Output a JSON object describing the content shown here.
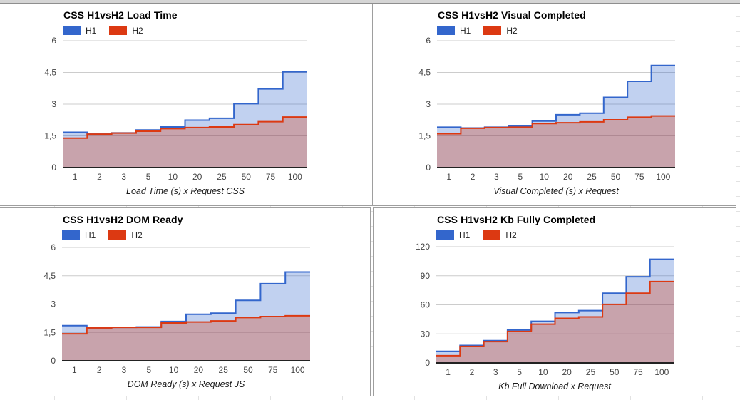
{
  "page": {
    "kind": "spreadsheet-embedded-charts",
    "grid": "2x2"
  },
  "legend": {
    "position": "top",
    "items": [
      "H1",
      "H2"
    ]
  },
  "colors": {
    "h1": "#3366cc",
    "h2": "#dc3912",
    "h1_fill": "rgba(51,102,204,0.30)",
    "h2_fill": "rgba(220,57,18,0.30)",
    "gridline": "#cccccc",
    "baseline": "#222222",
    "tick_label": "#444444",
    "card_border": "#9e9e9e",
    "sheet_gridline": "#e2e2e2",
    "top_strip": "#d5d5d5"
  },
  "chart_data": [
    {
      "id": "load-time",
      "type": "step-area",
      "title": "CSS H1vsH2 Load Time",
      "xlabel": "Load Time (s) x Request CSS",
      "categories": [
        "1",
        "2",
        "3",
        "5",
        "10",
        "20",
        "25",
        "50",
        "75",
        "100"
      ],
      "ylim": [
        0,
        6
      ],
      "y_ticks": [
        {
          "v": 0,
          "label": "0"
        },
        {
          "v": 1.5,
          "label": "1,5"
        },
        {
          "v": 3,
          "label": "3"
        },
        {
          "v": 4.5,
          "label": "4,5"
        },
        {
          "v": 6,
          "label": "6"
        }
      ],
      "grid": true,
      "legend_position": "top",
      "series": [
        {
          "name": "H1",
          "color": "#3366cc",
          "values": [
            1.67,
            1.58,
            1.64,
            1.78,
            1.92,
            2.24,
            2.33,
            3.02,
            3.72,
            4.53
          ]
        },
        {
          "name": "H2",
          "color": "#dc3912",
          "values": [
            1.39,
            1.58,
            1.63,
            1.72,
            1.84,
            1.89,
            1.92,
            2.03,
            2.17,
            2.39
          ]
        }
      ]
    },
    {
      "id": "visual-completed",
      "type": "step-area",
      "title": "CSS H1vsH2 Visual Completed",
      "xlabel": "Visual Completed (s) x Request",
      "categories": [
        "1",
        "2",
        "3",
        "5",
        "10",
        "20",
        "25",
        "50",
        "75",
        "100"
      ],
      "ylim": [
        0,
        6
      ],
      "y_ticks": [
        {
          "v": 0,
          "label": "0"
        },
        {
          "v": 1.5,
          "label": "1,5"
        },
        {
          "v": 3,
          "label": "3"
        },
        {
          "v": 4.5,
          "label": "4,5"
        },
        {
          "v": 6,
          "label": "6"
        }
      ],
      "grid": true,
      "legend_position": "top",
      "series": [
        {
          "name": "H1",
          "color": "#3366cc",
          "values": [
            1.91,
            1.87,
            1.91,
            1.96,
            2.2,
            2.5,
            2.57,
            3.32,
            4.08,
            4.83
          ]
        },
        {
          "name": "H2",
          "color": "#dc3912",
          "values": [
            1.6,
            1.86,
            1.89,
            1.91,
            2.08,
            2.12,
            2.16,
            2.26,
            2.38,
            2.44
          ]
        }
      ]
    },
    {
      "id": "dom-ready",
      "type": "step-area",
      "title": "CSS H1vsH2 DOM Ready",
      "xlabel": "DOM Ready (s) x Request JS",
      "categories": [
        "1",
        "2",
        "3",
        "5",
        "10",
        "20",
        "25",
        "50",
        "75",
        "100"
      ],
      "ylim": [
        0,
        6
      ],
      "y_ticks": [
        {
          "v": 0,
          "label": "0"
        },
        {
          "v": 1.5,
          "label": "1,5"
        },
        {
          "v": 3,
          "label": "3"
        },
        {
          "v": 4.5,
          "label": "4,5"
        },
        {
          "v": 6,
          "label": "6"
        }
      ],
      "grid": true,
      "legend_position": "top",
      "series": [
        {
          "name": "H1",
          "color": "#3366cc",
          "values": [
            1.86,
            1.74,
            1.77,
            1.79,
            2.08,
            2.46,
            2.52,
            3.2,
            4.08,
            4.7
          ]
        },
        {
          "name": "H2",
          "color": "#dc3912",
          "values": [
            1.43,
            1.74,
            1.77,
            1.77,
            2.0,
            2.05,
            2.11,
            2.29,
            2.34,
            2.38
          ]
        }
      ]
    },
    {
      "id": "kb-fully-completed",
      "type": "step-area",
      "title": "CSS H1vsH2 Kb Fully Completed",
      "xlabel": "Kb Full Download x Request",
      "categories": [
        "1",
        "2",
        "3",
        "5",
        "10",
        "20",
        "25",
        "50",
        "75",
        "100"
      ],
      "ylim": [
        0,
        120
      ],
      "y_ticks": [
        {
          "v": 0,
          "label": "0"
        },
        {
          "v": 30,
          "label": "30"
        },
        {
          "v": 60,
          "label": "60"
        },
        {
          "v": 90,
          "label": "90"
        },
        {
          "v": 120,
          "label": "120"
        }
      ],
      "grid": true,
      "legend_position": "top",
      "series": [
        {
          "name": "H1",
          "color": "#3366cc",
          "values": [
            12,
            18,
            23,
            34,
            43,
            52,
            54,
            72,
            89,
            107
          ]
        },
        {
          "name": "H2",
          "color": "#dc3912",
          "values": [
            7.5,
            17,
            22,
            32.5,
            40,
            46,
            47.5,
            60.5,
            72,
            84
          ]
        }
      ]
    }
  ]
}
